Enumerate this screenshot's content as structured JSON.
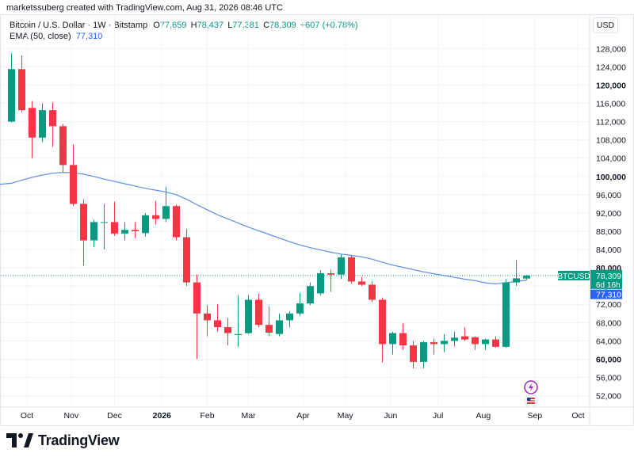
{
  "credit": "marketssuberg created with TradingView.com, Aug 31, 2026 08:46 UTC",
  "legend": {
    "symbol_line": "Bitcoin / U.S. Dollar · 1W · Bitstamp",
    "o_label": "O",
    "o_value": "77,659",
    "h_label": "H",
    "h_value": "78,437",
    "l_label": "L",
    "l_value": "77,381",
    "c_label": "C",
    "c_value": "78,309",
    "change": "+607 (+0.78%)",
    "ema_label": "EMA (50, close)",
    "ema_value": "77,310"
  },
  "currency": "USD",
  "logo_text": "TradingView",
  "price_tag": {
    "symbol": "BTCUSD",
    "price": "78,309",
    "countdown": "6d 16h",
    "ema": "77,310"
  },
  "colors": {
    "up": "#089981",
    "down": "#f23645",
    "ema": "#5b8ee6",
    "ema_tag": "#2962ff",
    "grid": "#f0f3fa",
    "axis_text": "#131722"
  },
  "chart_data": {
    "type": "candlestick",
    "title": "Bitcoin / U.S. Dollar · 1W · Bitstamp",
    "xlabel": "",
    "ylabel": "",
    "ylim": [
      49500,
      131000
    ],
    "y_ticks": [
      52000,
      56000,
      60000,
      64000,
      68000,
      72000,
      76000,
      80000,
      84000,
      88000,
      92000,
      96000,
      100000,
      104000,
      108000,
      112000,
      116000,
      120000,
      124000,
      128000
    ],
    "y_tick_labels": [
      "52,000",
      "56,000",
      "60,000",
      "64,000",
      "68,000",
      "72,000",
      "76,000",
      "80,000",
      "84,000",
      "88,000",
      "92,000",
      "96,000",
      "100,000",
      "104,000",
      "108,000",
      "112,000",
      "116,000",
      "120,000",
      "124,000",
      "128,000"
    ],
    "bold_y_ticks": [
      60000,
      80000,
      100000,
      120000
    ],
    "x_ticks": [
      {
        "label": "Oct",
        "index": 1.5
      },
      {
        "label": "Nov",
        "index": 5.8
      },
      {
        "label": "Dec",
        "index": 10.0
      },
      {
        "label": "2026",
        "index": 14.6,
        "bold": true
      },
      {
        "label": "Feb",
        "index": 19.0
      },
      {
        "label": "Mar",
        "index": 23.0
      },
      {
        "label": "Apr",
        "index": 28.3
      },
      {
        "label": "May",
        "index": 32.4
      },
      {
        "label": "Jun",
        "index": 36.8
      },
      {
        "label": "Jul",
        "index": 41.4
      },
      {
        "label": "Aug",
        "index": 45.8
      },
      {
        "label": "Sep",
        "index": 50.8
      },
      {
        "label": "Oct",
        "index": 55.0
      }
    ],
    "candles": [
      {
        "o": 112000,
        "h": 127000,
        "l": 111800,
        "c": 123500
      },
      {
        "o": 123500,
        "h": 126500,
        "l": 114000,
        "c": 114500
      },
      {
        "o": 115000,
        "h": 116500,
        "l": 104000,
        "c": 108500
      },
      {
        "o": 108500,
        "h": 116000,
        "l": 107500,
        "c": 114500
      },
      {
        "o": 114500,
        "h": 116200,
        "l": 106500,
        "c": 111000
      },
      {
        "o": 111000,
        "h": 111500,
        "l": 101000,
        "c": 102500
      },
      {
        "o": 102500,
        "h": 107000,
        "l": 93500,
        "c": 94000
      },
      {
        "o": 94000,
        "h": 95000,
        "l": 80500,
        "c": 86000
      },
      {
        "o": 86000,
        "h": 90500,
        "l": 84500,
        "c": 90000
      },
      {
        "o": 90000,
        "h": 94000,
        "l": 84000,
        "c": 90000
      },
      {
        "o": 90000,
        "h": 94500,
        "l": 87000,
        "c": 87500
      },
      {
        "o": 87500,
        "h": 90000,
        "l": 86000,
        "c": 88300
      },
      {
        "o": 88300,
        "h": 90000,
        "l": 86500,
        "c": 88000
      },
      {
        "o": 87600,
        "h": 92000,
        "l": 86800,
        "c": 91500
      },
      {
        "o": 91500,
        "h": 94700,
        "l": 89500,
        "c": 90700
      },
      {
        "o": 90700,
        "h": 97800,
        "l": 90000,
        "c": 93500
      },
      {
        "o": 93500,
        "h": 93800,
        "l": 86000,
        "c": 86700
      },
      {
        "o": 86700,
        "h": 88500,
        "l": 76000,
        "c": 76800
      },
      {
        "o": 76800,
        "h": 78500,
        "l": 60000,
        "c": 70000
      },
      {
        "o": 70000,
        "h": 71800,
        "l": 65000,
        "c": 68500
      },
      {
        "o": 68500,
        "h": 72000,
        "l": 66000,
        "c": 67000
      },
      {
        "o": 67000,
        "h": 69000,
        "l": 63000,
        "c": 65700
      },
      {
        "o": 65300,
        "h": 74000,
        "l": 62800,
        "c": 65500
      },
      {
        "o": 65700,
        "h": 74000,
        "l": 65500,
        "c": 73000
      },
      {
        "o": 73000,
        "h": 74300,
        "l": 67000,
        "c": 67500
      },
      {
        "o": 67500,
        "h": 71500,
        "l": 65000,
        "c": 65800
      },
      {
        "o": 65500,
        "h": 70000,
        "l": 65000,
        "c": 68500
      },
      {
        "o": 68500,
        "h": 70500,
        "l": 67000,
        "c": 70000
      },
      {
        "o": 70000,
        "h": 74500,
        "l": 69500,
        "c": 72200
      },
      {
        "o": 72200,
        "h": 76800,
        "l": 71800,
        "c": 76000
      },
      {
        "o": 74400,
        "h": 79500,
        "l": 74000,
        "c": 78800
      },
      {
        "o": 78800,
        "h": 79600,
        "l": 74700,
        "c": 78500
      },
      {
        "o": 78500,
        "h": 83000,
        "l": 77500,
        "c": 82300
      },
      {
        "o": 82300,
        "h": 82700,
        "l": 76500,
        "c": 77000
      },
      {
        "o": 77000,
        "h": 78000,
        "l": 76000,
        "c": 76300
      },
      {
        "o": 76300,
        "h": 77000,
        "l": 72500,
        "c": 73000
      },
      {
        "o": 73000,
        "h": 73500,
        "l": 59300,
        "c": 63300
      },
      {
        "o": 63300,
        "h": 66000,
        "l": 61000,
        "c": 65700
      },
      {
        "o": 65700,
        "h": 67800,
        "l": 62000,
        "c": 63000
      },
      {
        "o": 63000,
        "h": 64000,
        "l": 58000,
        "c": 59400
      },
      {
        "o": 59400,
        "h": 64000,
        "l": 58000,
        "c": 63700
      },
      {
        "o": 63700,
        "h": 64500,
        "l": 61000,
        "c": 63300
      },
      {
        "o": 63300,
        "h": 65500,
        "l": 61500,
        "c": 64000
      },
      {
        "o": 64000,
        "h": 66000,
        "l": 62800,
        "c": 64700
      },
      {
        "o": 65000,
        "h": 67000,
        "l": 64000,
        "c": 64300
      },
      {
        "o": 64800,
        "h": 65000,
        "l": 62000,
        "c": 63300
      },
      {
        "o": 63300,
        "h": 64500,
        "l": 62000,
        "c": 64300
      },
      {
        "o": 64300,
        "h": 65000,
        "l": 62500,
        "c": 62700
      },
      {
        "o": 62700,
        "h": 77500,
        "l": 62500,
        "c": 76800
      },
      {
        "o": 76800,
        "h": 81700,
        "l": 76000,
        "c": 77700
      },
      {
        "o": 77659,
        "h": 78437,
        "l": 77381,
        "c": 78309
      }
    ],
    "series": [
      {
        "name": "EMA (50, close)",
        "values": [
          98500,
          99200,
          99800,
          100300,
          100700,
          100900,
          100800,
          100500,
          100000,
          99400,
          98900,
          98400,
          97900,
          97400,
          97000,
          96600,
          96000,
          95000,
          93800,
          92700,
          91600,
          90700,
          89800,
          88900,
          88100,
          87300,
          86500,
          85700,
          85000,
          84400,
          83900,
          83400,
          83000,
          82700,
          82400,
          81900,
          81200,
          80600,
          80100,
          79600,
          79100,
          78700,
          78300,
          77900,
          77500,
          77200,
          76700,
          76500,
          76700,
          77000,
          77310
        ]
      }
    ]
  }
}
